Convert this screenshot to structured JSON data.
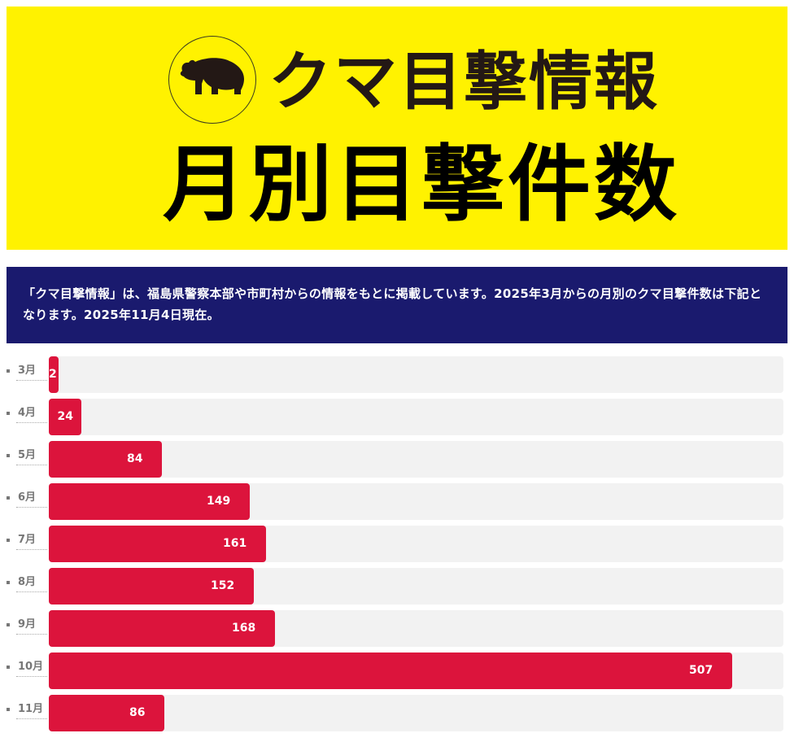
{
  "header": {
    "title": "クマ目撃情報",
    "subtitle": "月別目撃件数"
  },
  "notice": {
    "text": "「クマ目撃情報」は、福島県警察本部や市町村からの情報をもとに掲載しています。2025年3月からの月別のクマ目撃件数は下記となります。2025年11月4日現在。"
  },
  "colors": {
    "banner": "#fff200",
    "notice_bg": "#1a1a6e",
    "bar": "#dc143c",
    "track": "#f2f2f2"
  },
  "icons": [
    "bear-icon"
  ],
  "chart_data": {
    "type": "bar",
    "orientation": "horizontal",
    "title": "月別目撃件数",
    "categories": [
      "3月",
      "4月",
      "5月",
      "6月",
      "7月",
      "8月",
      "9月",
      "10月",
      "11月"
    ],
    "values": [
      2,
      24,
      84,
      149,
      161,
      152,
      168,
      507,
      86
    ],
    "xlim": [
      0,
      545
    ],
    "grid": false,
    "legend": "none"
  }
}
